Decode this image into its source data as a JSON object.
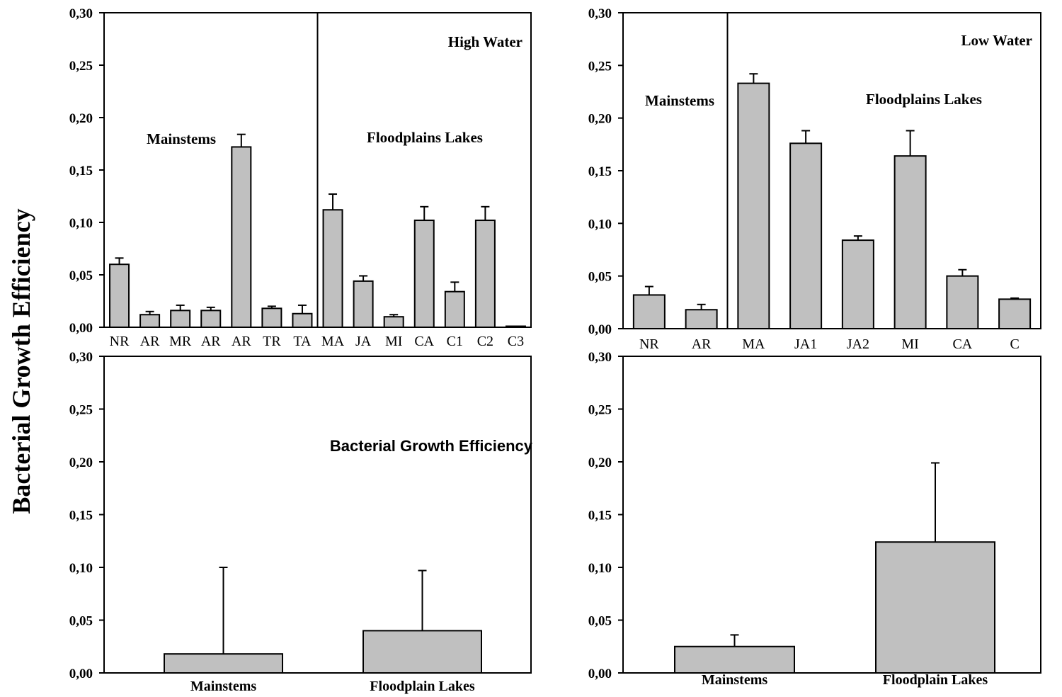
{
  "y_axis_label": "Bacterial Growth Efficiency",
  "chart_data": [
    {
      "type": "bar",
      "panel": "top-left",
      "title": "High Water",
      "ylim": [
        0,
        0.3
      ],
      "yticks": [
        "0,00",
        "0,05",
        "0,10",
        "0,15",
        "0,20",
        "0,25",
        "0,30"
      ],
      "categories": [
        "NR",
        "AR",
        "MR",
        "AR",
        "AR",
        "TR",
        "TA",
        "MA",
        "JA",
        "MI",
        "CA",
        "C1",
        "C2",
        "C3"
      ],
      "values": [
        0.06,
        0.012,
        0.016,
        0.016,
        0.172,
        0.018,
        0.013,
        0.112,
        0.044,
        0.01,
        0.102,
        0.034,
        0.102,
        0.001
      ],
      "errors": [
        0.006,
        0.003,
        0.005,
        0.003,
        0.012,
        0.002,
        0.008,
        0.015,
        0.005,
        0.002,
        0.013,
        0.009,
        0.013,
        0.0
      ],
      "groups": [
        {
          "label": "Mainstems",
          "start": 0,
          "end": 6
        },
        {
          "label": "Floodplains Lakes",
          "start": 7,
          "end": 13
        }
      ],
      "divider_after_index": 6
    },
    {
      "type": "bar",
      "panel": "top-right",
      "title": "Low Water",
      "ylim": [
        0,
        0.3
      ],
      "yticks": [
        "0,00",
        "0,05",
        "0,10",
        "0,15",
        "0,20",
        "0,25",
        "0,30"
      ],
      "categories": [
        "NR",
        "AR",
        "MA",
        "JA1",
        "JA2",
        "MI",
        "CA",
        "C"
      ],
      "values": [
        0.032,
        0.018,
        0.233,
        0.176,
        0.084,
        0.164,
        0.05,
        0.028
      ],
      "errors": [
        0.008,
        0.005,
        0.009,
        0.012,
        0.004,
        0.024,
        0.006,
        0.001
      ],
      "groups": [
        {
          "label": "Mainstems",
          "start": 0,
          "end": 1
        },
        {
          "label": "Floodplains Lakes",
          "start": 2,
          "end": 7
        }
      ],
      "divider_after_index": 1
    },
    {
      "type": "bar",
      "panel": "bottom-left",
      "title": "Bacterial Growth Efficiency",
      "ylim": [
        0,
        0.3
      ],
      "yticks": [
        "0,00",
        "0,05",
        "0,10",
        "0,15",
        "0,20",
        "0,25",
        "0,30"
      ],
      "categories": [
        "Mainstems",
        "Floodplain Lakes"
      ],
      "values": [
        0.018,
        0.04
      ],
      "errors": [
        0.082,
        0.057
      ]
    },
    {
      "type": "bar",
      "panel": "bottom-right",
      "title": "",
      "ylim": [
        0,
        0.3
      ],
      "yticks": [
        "0,00",
        "0,05",
        "0,10",
        "0,15",
        "0,20",
        "0,25",
        "0,30"
      ],
      "categories": [
        "Mainstems",
        "Floodplain Lakes"
      ],
      "values": [
        0.025,
        0.124
      ],
      "errors": [
        0.011,
        0.075
      ]
    }
  ]
}
